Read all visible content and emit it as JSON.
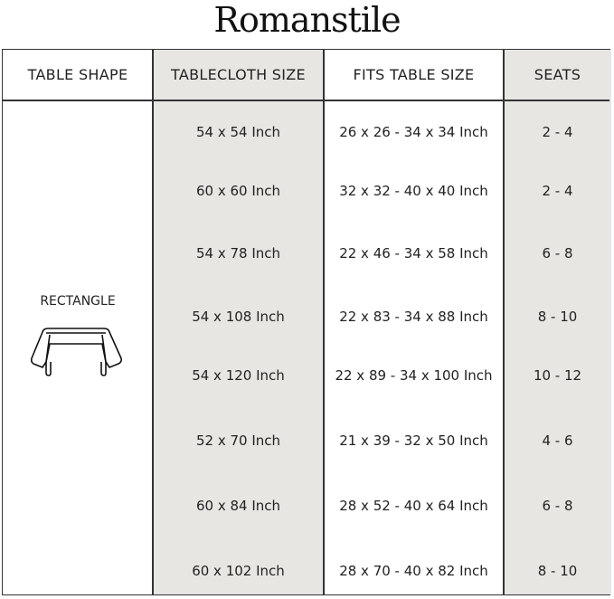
{
  "brand": "Romanstile",
  "headers": [
    "TABLE SHAPE",
    "TABLECLOTH SIZE",
    "FITS TABLE SIZE",
    "SEATS"
  ],
  "shape": {
    "label": "RECTANGLE",
    "icon": "rectangle-table-icon"
  },
  "rows": [
    {
      "size": "54 x 54 Inch",
      "fits": "26 x 26 - 34 x 34 Inch",
      "seats": "2 - 4"
    },
    {
      "size": "60 x 60 Inch",
      "fits": "32 x 32 - 40 x 40 Inch",
      "seats": "2 - 4"
    },
    {
      "size": "54 x 78 Inch",
      "fits": "22 x 46 - 34 x 58 Inch",
      "seats": "6 - 8"
    },
    {
      "size": "54 x 108 Inch",
      "fits": "22 x 83 - 34 x 88 Inch",
      "seats": "8 - 10"
    },
    {
      "size": "54 x 120 Inch",
      "fits": "22 x 89 - 34 x 100 Inch",
      "seats": "10 - 12"
    },
    {
      "size": "52 x 70 Inch",
      "fits": "21 x 39 - 32 x 50 Inch",
      "seats": "4 - 6"
    },
    {
      "size": "60 x 84 Inch",
      "fits": "28 x 52 - 40 x 64 Inch",
      "seats": "6 - 8"
    },
    {
      "size": "60 x 102 Inch",
      "fits": "28 x 70 - 40 x 82 Inch",
      "seats": "8 - 10"
    }
  ],
  "colors": {
    "shaded": "#e8e6e3",
    "border": "#333333"
  }
}
